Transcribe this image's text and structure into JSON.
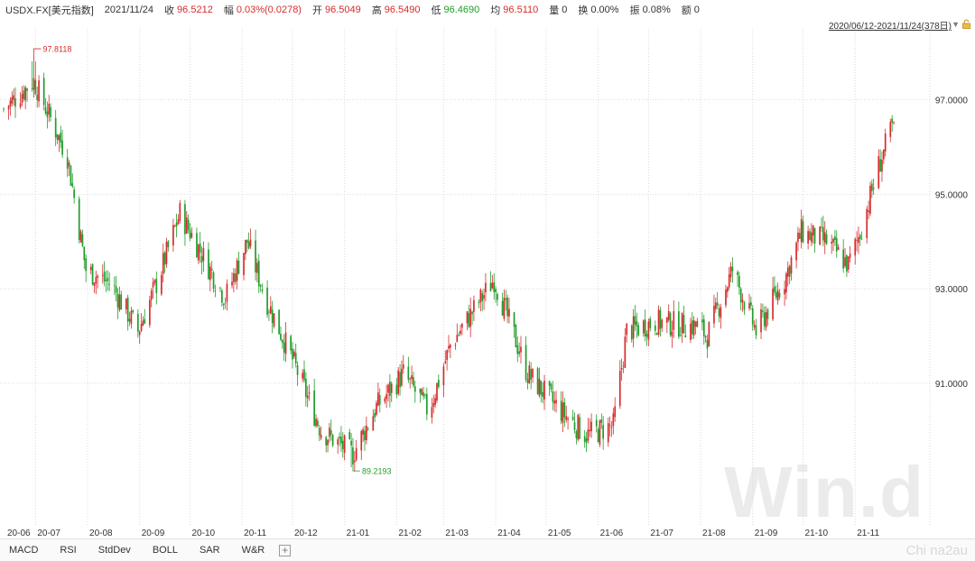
{
  "header": {
    "symbol": "USDX.FX[美元指数]",
    "date": "2021/11/24",
    "close_label": "收",
    "close_value": "96.5212",
    "change_label": "幅",
    "change_value": "0.03%(0.0278)",
    "open_label": "开",
    "open_value": "96.5049",
    "high_label": "高",
    "high_value": "96.5490",
    "low_label": "低",
    "low_value": "96.4690",
    "avg_label": "均",
    "avg_value": "96.5110",
    "volume_label": "量",
    "volume_value": "0",
    "turnover_label": "换",
    "turnover_value": "0.00%",
    "amplitude_label": "振",
    "amplitude_value": "0.08%",
    "amount_label": "额",
    "amount_value": "0"
  },
  "range_label": "2020/06/12-2021/11/24(378日)",
  "watermark": "Win.d",
  "footer_watermark": "Chi na2au",
  "footer_tabs": [
    "MACD",
    "RSI",
    "StdDev",
    "BOLL",
    "SAR",
    "W&R"
  ],
  "colors": {
    "up": "#d62c2c",
    "down": "#1f9d2a",
    "grid": "#d9d9e6",
    "axis_text": "#333333"
  },
  "icons": [
    "dropdown-triangle-icon",
    "lock-icon",
    "plus-icon"
  ],
  "chart_data": {
    "type": "candlestick",
    "title": "USDX.FX[美元指数]",
    "period": "2020/06/12-2021/11/24",
    "trading_days": 378,
    "ylim": [
      88.0,
      98.5
    ],
    "y_ticks": [
      "97.0000",
      "95.0000",
      "93.0000",
      "91.0000"
    ],
    "y_tick_values": [
      97,
      95,
      93,
      91
    ],
    "x_tick_labels": [
      "20-06",
      "20-07",
      "20-08",
      "20-09",
      "20-10",
      "20-11",
      "20-12",
      "21-01",
      "21-02",
      "21-03",
      "21-04",
      "21-05",
      "21-06",
      "21-07",
      "21-08",
      "21-09",
      "21-10",
      "21-11"
    ],
    "max_annotation": {
      "label": "97.8118",
      "value": 97.8118,
      "date": "2020-06-30"
    },
    "min_annotation": {
      "label": "89.2193",
      "value": 89.2193,
      "date": "2021-01-06"
    },
    "anchors": [
      {
        "date": "2020-06-12",
        "close": 96.8
      },
      {
        "date": "2020-06-30",
        "close": 97.4
      },
      {
        "date": "2020-07-20",
        "close": 95.8
      },
      {
        "date": "2020-07-31",
        "close": 93.4
      },
      {
        "date": "2020-08-15",
        "close": 93.1
      },
      {
        "date": "2020-08-31",
        "close": 92.1
      },
      {
        "date": "2020-09-12",
        "close": 93.2
      },
      {
        "date": "2020-09-25",
        "close": 94.6
      },
      {
        "date": "2020-10-10",
        "close": 93.6
      },
      {
        "date": "2020-10-22",
        "close": 92.8
      },
      {
        "date": "2020-11-04",
        "close": 94.0
      },
      {
        "date": "2020-11-15",
        "close": 92.8
      },
      {
        "date": "2020-12-01",
        "close": 91.5
      },
      {
        "date": "2020-12-18",
        "close": 90.0
      },
      {
        "date": "2021-01-06",
        "close": 89.5
      },
      {
        "date": "2021-01-20",
        "close": 90.5
      },
      {
        "date": "2021-02-05",
        "close": 91.2
      },
      {
        "date": "2021-02-20",
        "close": 90.4
      },
      {
        "date": "2021-03-05",
        "close": 91.8
      },
      {
        "date": "2021-03-31",
        "close": 93.2
      },
      {
        "date": "2021-04-20",
        "close": 91.2
      },
      {
        "date": "2021-05-10",
        "close": 90.4
      },
      {
        "date": "2021-05-25",
        "close": 89.9
      },
      {
        "date": "2021-06-10",
        "close": 90.1
      },
      {
        "date": "2021-06-18",
        "close": 92.1
      },
      {
        "date": "2021-07-05",
        "close": 92.3
      },
      {
        "date": "2021-07-30",
        "close": 92.2
      },
      {
        "date": "2021-08-05",
        "close": 92.0
      },
      {
        "date": "2021-08-20",
        "close": 93.4
      },
      {
        "date": "2021-09-03",
        "close": 92.1
      },
      {
        "date": "2021-09-20",
        "close": 93.2
      },
      {
        "date": "2021-09-30",
        "close": 94.2
      },
      {
        "date": "2021-10-15",
        "close": 94.0
      },
      {
        "date": "2021-10-28",
        "close": 93.5
      },
      {
        "date": "2021-11-05",
        "close": 94.3
      },
      {
        "date": "2021-11-15",
        "close": 95.6
      },
      {
        "date": "2021-11-24",
        "close": 96.5212
      }
    ],
    "last": {
      "open": 96.5049,
      "high": 96.549,
      "low": 96.469,
      "close": 96.5212
    },
    "grid": true
  }
}
